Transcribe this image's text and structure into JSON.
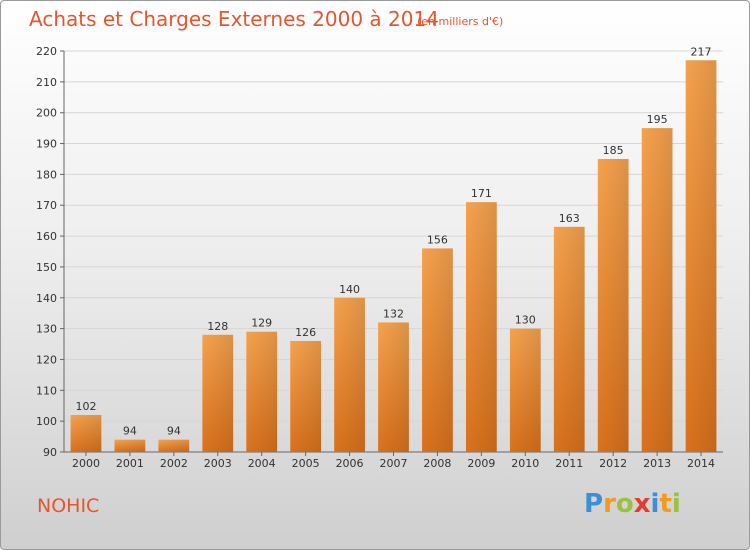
{
  "header": {
    "title": "Achats et Charges Externes 2000 à 2014",
    "unit": "(en milliers d'€)"
  },
  "footer": {
    "city": "NOHIC",
    "logo_letters": [
      {
        "ch": "P",
        "color": "#3a8fd6"
      },
      {
        "ch": "r",
        "color": "#f29a1f"
      },
      {
        "ch": "o",
        "color": "#9bc23c"
      },
      {
        "ch": "x",
        "color": "#e63b2e"
      },
      {
        "ch": "i",
        "color": "#3a8fd6"
      },
      {
        "ch": "t",
        "color": "#f29a1f"
      },
      {
        "ch": "i",
        "color": "#9bc23c"
      }
    ]
  },
  "chart_data": {
    "type": "bar",
    "title": "Achats et Charges Externes 2000 à 2014",
    "subtitle": "(en milliers d'€)",
    "categories": [
      "2000",
      "2001",
      "2002",
      "2003",
      "2004",
      "2005",
      "2006",
      "2007",
      "2008",
      "2009",
      "2010",
      "2011",
      "2012",
      "2013",
      "2014"
    ],
    "values": [
      102,
      94,
      94,
      128,
      129,
      126,
      140,
      132,
      156,
      171,
      130,
      163,
      185,
      195,
      217
    ],
    "ylim": [
      90,
      220
    ],
    "yticks": [
      90,
      100,
      110,
      120,
      130,
      140,
      150,
      160,
      170,
      180,
      190,
      200,
      210,
      220
    ],
    "grid": true,
    "bar_color_top": "#f5a24e",
    "bar_color_bottom": "#d9711c"
  }
}
